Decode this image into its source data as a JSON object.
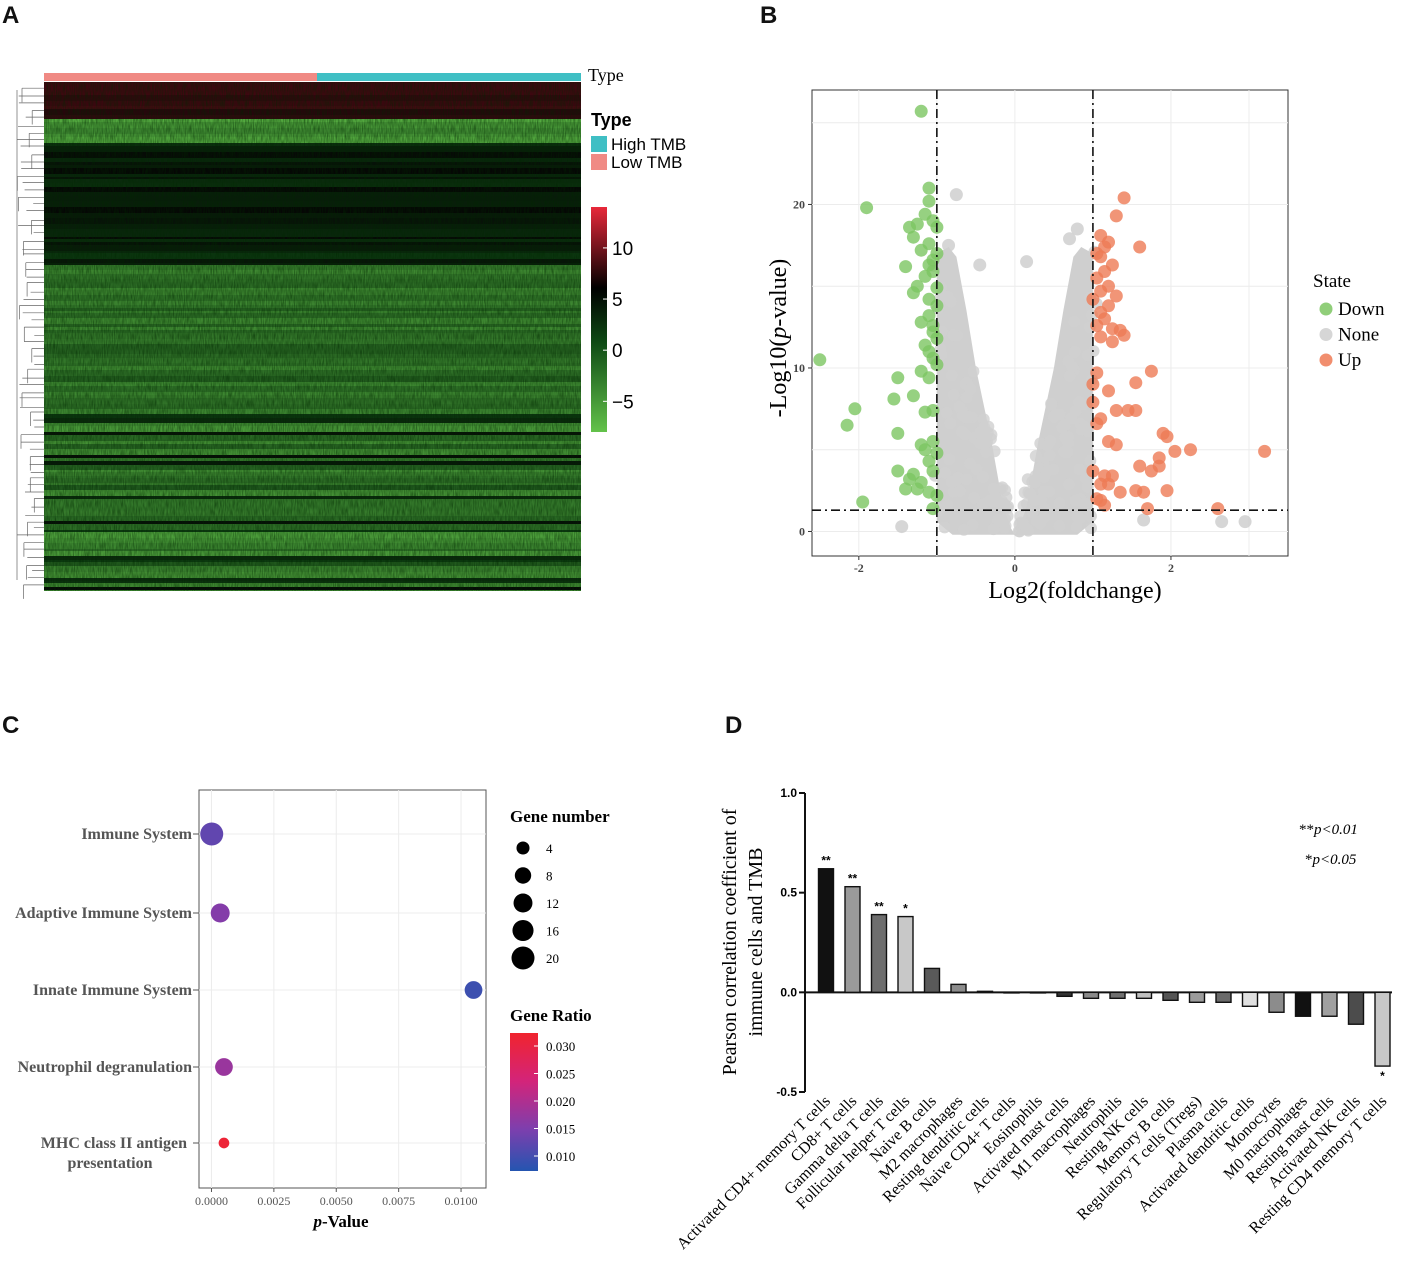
{
  "panels": {
    "a": "A",
    "b": "B",
    "c": "C",
    "d": "D"
  },
  "chart_data": [
    {
      "type": "heatmap",
      "panel": "A",
      "annotation_label": "Type",
      "legend_title": "Type",
      "groups": [
        {
          "name": "High TMB",
          "color": "#3fbfc4"
        },
        {
          "name": "Low TMB",
          "color": "#f08a84"
        }
      ],
      "colorbar_ticks": [
        "10",
        "5",
        "0",
        "−5"
      ],
      "colorbar_range": [
        -8,
        14
      ],
      "colorbar_colors": [
        "#e8283a",
        "#000000",
        "#63c24a"
      ]
    },
    {
      "type": "scatter",
      "panel": "B",
      "xlabel": "Log2(foldchange)",
      "ylabel_prefix": "-Log10(",
      "ylabel_italic": "p",
      "ylabel_suffix": "-value)",
      "xlim": [
        -2.6,
        3.5
      ],
      "ylim": [
        -1.5,
        27
      ],
      "x_ticks": [
        "-2",
        "0",
        "2"
      ],
      "y_ticks": [
        "0",
        "10",
        "20"
      ],
      "thresholds": {
        "fc": [
          -1,
          1
        ],
        "p": 1.3
      },
      "legend_title": "State",
      "series": [
        {
          "name": "Down",
          "color": "#7cc561",
          "x": [
            -1.2,
            -1.1,
            -1.1,
            -1.15,
            -1.05,
            -1.0,
            -1.25,
            -1.9,
            -1.35,
            -1.3,
            -1.1,
            -1.0,
            -1.2,
            -1.05,
            -1.1,
            -1.4,
            -1.05,
            -1.15,
            -1.25,
            -1.0,
            -1.3,
            -1.1,
            -1.0,
            -1.1,
            -1.2,
            -1.05,
            -1.05,
            -1.0,
            -1.15,
            -1.1,
            -1.05,
            -1.0,
            -1.2,
            -1.1,
            -1.5,
            -1.3,
            -2.5,
            -1.55,
            -2.05,
            -2.15,
            -1.15,
            -1.05,
            -1.5,
            -1.2,
            -1.0,
            -1.1,
            -1.05,
            -1.35,
            -1.2,
            -1.4,
            -1.1,
            -1.0,
            -1.5,
            -1.25,
            -1.05,
            -1.15,
            -1.3,
            -1.95,
            -1.05
          ],
          "y": [
            25.7,
            21.0,
            20.2,
            19.4,
            19.0,
            18.6,
            18.8,
            19.8,
            18.6,
            18.0,
            17.6,
            17.0,
            17.2,
            16.6,
            16.3,
            16.2,
            15.9,
            15.6,
            15.0,
            14.9,
            14.6,
            14.2,
            13.8,
            13.2,
            12.8,
            12.6,
            12.2,
            11.8,
            11.4,
            11.0,
            10.6,
            10.2,
            9.8,
            9.4,
            9.4,
            8.3,
            10.5,
            8.1,
            7.5,
            6.5,
            7.3,
            7.4,
            6.0,
            5.3,
            4.8,
            4.3,
            3.7,
            3.2,
            3.0,
            2.6,
            2.4,
            2.2,
            3.7,
            2.6,
            5.5,
            5.0,
            3.5,
            1.8,
            1.4
          ]
        },
        {
          "name": "None",
          "color": "#cfcfcf",
          "x": [],
          "y": []
        },
        {
          "name": "Up",
          "color": "#ee7a55",
          "x": [
            1.4,
            1.3,
            1.1,
            1.2,
            1.15,
            1.05,
            1.6,
            1.1,
            1.25,
            1.15,
            1.05,
            1.2,
            1.1,
            1.3,
            1.0,
            1.2,
            1.1,
            1.15,
            1.05,
            1.25,
            1.35,
            1.1,
            1.25,
            1.4,
            1.05,
            1.0,
            1.2,
            1.75,
            1.55,
            1.0,
            1.3,
            1.45,
            1.55,
            1.1,
            1.05,
            1.2,
            1.3,
            1.9,
            1.95,
            1.85,
            2.05,
            2.25,
            1.6,
            1.75,
            1.85,
            1.65,
            1.35,
            1.2,
            1.1,
            1.0,
            1.15,
            1.25,
            1.55,
            1.95,
            1.05,
            1.1,
            1.15,
            3.2,
            2.6,
            1.7
          ],
          "y": [
            20.4,
            19.3,
            18.1,
            17.7,
            17.4,
            17.0,
            17.4,
            16.8,
            16.3,
            15.9,
            15.5,
            15.0,
            14.7,
            14.4,
            14.2,
            13.8,
            13.4,
            13.0,
            12.6,
            12.4,
            12.3,
            11.9,
            11.6,
            12.0,
            9.7,
            9.0,
            8.6,
            9.8,
            9.1,
            7.9,
            7.4,
            7.4,
            7.4,
            6.9,
            6.6,
            5.5,
            5.3,
            6.0,
            5.8,
            4.5,
            4.9,
            5.0,
            4.0,
            3.7,
            4.0,
            2.4,
            2.4,
            2.9,
            2.9,
            3.7,
            3.4,
            3.4,
            2.5,
            2.5,
            2.0,
            1.9,
            1.6,
            4.9,
            1.4,
            1.4
          ]
        }
      ]
    },
    {
      "type": "scatter",
      "panel": "C",
      "xlabel_italic": "p",
      "xlabel_suffix": "-Value",
      "xlim": [
        -0.0005,
        0.011
      ],
      "x_ticks": [
        "0.0000",
        "0.0025",
        "0.0050",
        "0.0075",
        "0.0100"
      ],
      "categories": [
        "Immune System",
        "Adaptive Immune System",
        "Innate Immune System",
        "Neutrophil degranulation",
        "MHC class II antigen presentation"
      ],
      "category_lines": [
        [
          "Immune System"
        ],
        [
          "Adaptive Immune System"
        ],
        [
          "Innate Immune System"
        ],
        [
          "Neutrophil degranulation"
        ],
        [
          "MHC class II antigen",
          "presentation"
        ]
      ],
      "p_values": [
        1e-05,
        0.00035,
        0.0105,
        0.0005,
        0.0005
      ],
      "gene_number": [
        20,
        12,
        10,
        10,
        2
      ],
      "gene_ratio": [
        0.013,
        0.016,
        0.01,
        0.018,
        0.031
      ],
      "size_legend_title": "Gene number",
      "size_legend": [
        "4",
        "8",
        "12",
        "16",
        "20"
      ],
      "color_legend_title": "Gene Ratio",
      "color_legend": [
        "0.030",
        "0.025",
        "0.020",
        "0.015",
        "0.010"
      ],
      "color_range": [
        0.008,
        0.032
      ]
    },
    {
      "type": "bar",
      "panel": "D",
      "ylabel_lines": [
        "Pearson correlation coefficient of",
        "immune cells and TMB"
      ],
      "ylim": [
        -0.5,
        1.0
      ],
      "y_ticks": [
        "1.0",
        "0.5",
        "0.0",
        "-0.5"
      ],
      "annotation_lines": [
        [
          "**",
          "p<0.01"
        ],
        [
          "*",
          "p<0.05"
        ]
      ],
      "categories": [
        "Activated CD4+ memory T cells",
        "CD8+ T cells",
        "Gamma delta T cells",
        "Follicular helper T cells",
        "Naive B cells",
        "M2 macrophages",
        "Resting dendritic cells",
        "Naive CD4+ T cells",
        "Eosinophils",
        "Activated mast cells",
        "M1 macrophages",
        "Neutrophils",
        "Resting NK cells",
        "Memory B cells",
        "Regulatory T cells (Tregs)",
        "Plasma cells",
        "Activated dendritic cells",
        "Monocytes",
        "M0 macrophages",
        "Resting mast cells",
        "Activated NK cells",
        "Resting CD4 memory T cells"
      ],
      "values": [
        0.62,
        0.53,
        0.39,
        0.38,
        0.12,
        0.04,
        0.005,
        0.0,
        0.0,
        -0.02,
        -0.03,
        -0.03,
        -0.03,
        -0.04,
        -0.05,
        -0.05,
        -0.07,
        -0.1,
        -0.12,
        -0.12,
        -0.16,
        -0.37
      ],
      "significance": [
        "**",
        "**",
        "**",
        "*",
        "",
        "",
        "",
        "",
        "",
        "",
        "",
        "",
        "",
        "",
        "",
        "",
        "",
        "",
        "",
        "",
        "",
        "*"
      ],
      "bar_colors": [
        "#111111",
        "#9a9a9a",
        "#6e6e6e",
        "#c8c8c8",
        "#5a5a5a",
        "#8c8c8c",
        "#555555",
        "#555555",
        "#555555",
        "#333333",
        "#8a8a8a",
        "#707070",
        "#c0c0c0",
        "#555555",
        "#9c9c9c",
        "#6a6a6a",
        "#e0e0e0",
        "#8c8c8c",
        "#111111",
        "#a0a0a0",
        "#4c4c4c",
        "#c8c8c8"
      ]
    }
  ]
}
